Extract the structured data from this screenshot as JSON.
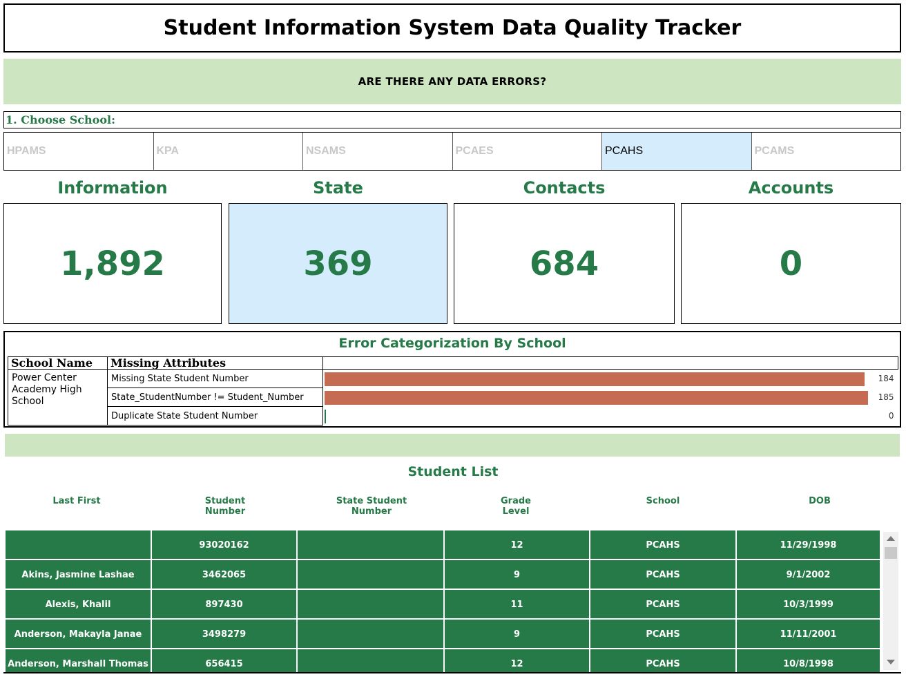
{
  "header": {
    "title": "Student Information System Data Quality Tracker"
  },
  "banner": {
    "text": "ARE THERE ANY DATA ERRORS?"
  },
  "school_picker": {
    "label": "1. Choose School:",
    "options": [
      "HPAMS",
      "KPA",
      "NSAMS",
      "PCAES",
      "PCAHS",
      "PCAMS"
    ],
    "selected": "PCAHS"
  },
  "kpis": [
    {
      "label": "Information",
      "value": "1,892"
    },
    {
      "label": "State",
      "value": "369"
    },
    {
      "label": "Contacts",
      "value": "684"
    },
    {
      "label": "Accounts",
      "value": "0"
    }
  ],
  "error_categorization": {
    "title": "Error Categorization By School",
    "headers": {
      "school": "School Name",
      "attribute": "Missing Attributes"
    },
    "school_name": "Power Center Academy High School",
    "rows": [
      {
        "attribute": "Missing State Student Number",
        "count": 184
      },
      {
        "attribute": "State_StudentNumber != Student_Number",
        "count": 185
      },
      {
        "attribute": "Duplicate State Student Number",
        "count": 0
      }
    ],
    "bar_max": 185,
    "bar_color": "#c56b52"
  },
  "student_list": {
    "title": "Student List",
    "columns": [
      "Last First",
      "Student Number",
      "State Student Number",
      "Grade Level",
      "School",
      "DOB"
    ],
    "rows": [
      [
        "",
        "93020162",
        "",
        "12",
        "PCAHS",
        "11/29/1998"
      ],
      [
        "Akins, Jasmine Lashae",
        "3462065",
        "",
        "9",
        "PCAHS",
        "9/1/2002"
      ],
      [
        "Alexis, Khalil",
        "897430",
        "",
        "11",
        "PCAHS",
        "10/3/1999"
      ],
      [
        "Anderson, Makayla Janae",
        "3498279",
        "",
        "9",
        "PCAHS",
        "11/11/2001"
      ],
      [
        "Anderson, Marshall Thomas",
        "656415",
        "",
        "12",
        "PCAHS",
        "10/8/1998"
      ]
    ]
  },
  "colors": {
    "accent_green": "#267a48",
    "banner_green": "#cde5c1",
    "selected_blue": "#d4ecfb"
  }
}
